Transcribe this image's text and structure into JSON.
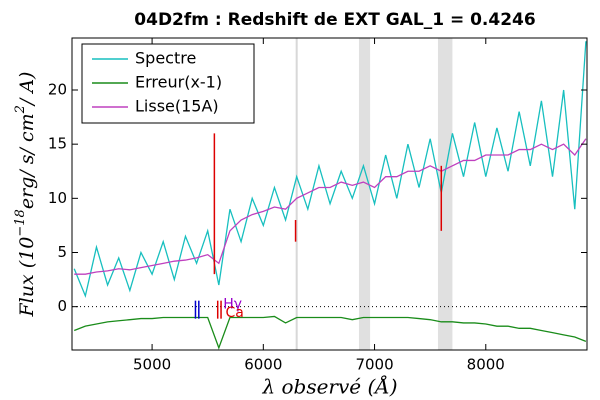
{
  "chart_data": {
    "type": "line",
    "title": "04D2fm : Redshift de EXT GAL_1 = 0.4246",
    "x_label": "λ observé (Å)",
    "y_label": [
      "Flux (10",
      "−18",
      "erg/ s/ cm",
      "2",
      "/ A)"
    ],
    "x": [
      4300,
      4400,
      4500,
      4600,
      4700,
      4800,
      4900,
      5000,
      5100,
      5200,
      5300,
      5400,
      5500,
      5600,
      5700,
      5800,
      5900,
      6000,
      6100,
      6200,
      6300,
      6400,
      6500,
      6600,
      6700,
      6800,
      6900,
      7000,
      7100,
      7200,
      7300,
      7400,
      7500,
      7600,
      7700,
      7800,
      7900,
      8000,
      8100,
      8200,
      8300,
      8400,
      8500,
      8600,
      8700,
      8800,
      8900
    ],
    "series": [
      {
        "name": "Spectre",
        "color": "#17bfbf",
        "values": [
          3.5,
          1,
          5.5,
          2,
          4.5,
          1.5,
          5,
          3,
          6,
          2.5,
          6.5,
          4,
          7,
          2,
          9,
          6,
          10,
          7.5,
          11,
          8,
          12,
          9,
          13,
          9.5,
          12.5,
          10,
          13,
          9.5,
          14,
          10,
          15,
          11,
          15.5,
          10.5,
          16,
          12,
          17,
          12,
          16.5,
          12.5,
          18,
          13,
          19,
          12,
          20,
          9,
          24.5
        ]
      },
      {
        "name": "Erreur(x-1)",
        "color": "#1a8c1a",
        "values": [
          -2.2,
          -1.8,
          -1.6,
          -1.4,
          -1.3,
          -1.2,
          -1.1,
          -1.1,
          -1,
          -1,
          -1,
          -1,
          -1,
          -3.8,
          -1,
          -1,
          -1,
          -1,
          -0.9,
          -1.5,
          -1,
          -1,
          -1,
          -1,
          -1,
          -1.2,
          -1,
          -1,
          -1,
          -1,
          -1,
          -1.1,
          -1.2,
          -1.4,
          -1.4,
          -1.5,
          -1.5,
          -1.6,
          -1.8,
          -1.8,
          -2,
          -2,
          -2.2,
          -2.4,
          -2.6,
          -2.8,
          -3.2
        ]
      },
      {
        "name": "Lisse(15A)",
        "color": "#bf40bf",
        "values": [
          3,
          3,
          3.2,
          3.3,
          3.5,
          3.4,
          3.6,
          3.8,
          4,
          4.2,
          4.3,
          4.5,
          4.8,
          4,
          7,
          8,
          8.5,
          8.8,
          9.2,
          9,
          10,
          10.5,
          11,
          11,
          11.5,
          11.2,
          11.5,
          11,
          12,
          12,
          12.5,
          12.5,
          13,
          12.5,
          13,
          13.5,
          13.5,
          14,
          14,
          14,
          14.5,
          14.5,
          15,
          14.5,
          15,
          14,
          15.5
        ]
      }
    ],
    "xlim": [
      4280,
      8910
    ],
    "ylim": [
      -4,
      24.8
    ],
    "xticks": [
      5000,
      6000,
      7000,
      8000
    ],
    "yticks": [
      0,
      5,
      10,
      15,
      20
    ],
    "zero_line": 0,
    "bands": [
      [
        6860,
        6960
      ],
      [
        7570,
        7700
      ]
    ],
    "vlines": [
      6300
    ],
    "red_lines": [
      {
        "x": 5560,
        "range": [
          3,
          16
        ]
      },
      {
        "x": 6290,
        "range": [
          6,
          8
        ]
      },
      {
        "x": 7600,
        "range": [
          7,
          13
        ]
      }
    ],
    "line_markers": [
      {
        "x": 5390,
        "color": "#0000cc"
      },
      {
        "x": 5420,
        "color": "#0000cc"
      },
      {
        "x": 5590,
        "color": "#dd0000"
      },
      {
        "x": 5620,
        "color": "#dd0000"
      }
    ],
    "line_labels": [
      {
        "text": "Hγ",
        "x": 5640,
        "y": 0.2,
        "color": "#9900cc"
      },
      {
        "text": "Ca",
        "x": 5660,
        "y": -0.6,
        "color": "#dd0000"
      }
    ]
  }
}
